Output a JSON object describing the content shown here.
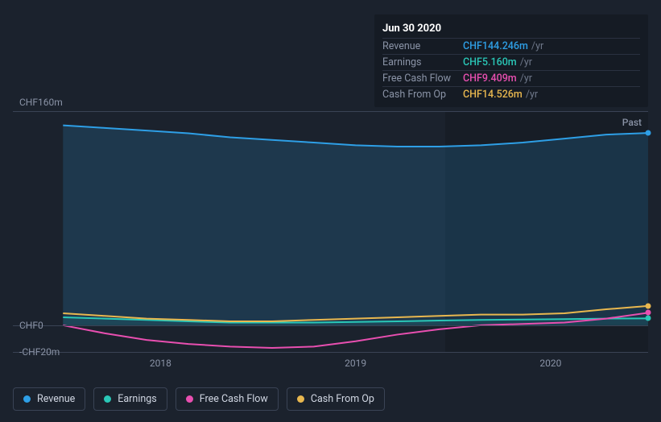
{
  "tooltip": {
    "date": "Jun 30 2020",
    "rows": [
      {
        "label": "Revenue",
        "value": "CHF144.246m",
        "unit": "/yr",
        "color": "#2e9fe6"
      },
      {
        "label": "Earnings",
        "value": "CHF5.160m",
        "unit": "/yr",
        "color": "#2ac7b7"
      },
      {
        "label": "Free Cash Flow",
        "value": "CHF9.409m",
        "unit": "/yr",
        "color": "#e84fb0"
      },
      {
        "label": "Cash From Op",
        "value": "CHF14.526m",
        "unit": "/yr",
        "color": "#e8b74f"
      }
    ]
  },
  "chart": {
    "type": "area-line",
    "y_top_label": "CHF160m",
    "y_zero_label": "CHF0",
    "y_bottom_label": "-CHF20m",
    "ylim": [
      -20,
      160
    ],
    "past_label": "Past",
    "past_shade_from_pct": 68,
    "zero_line_pct": 88.9,
    "gridline_color": "#3a4355",
    "background": "#1b222d",
    "x_ticks": [
      {
        "label": "2018",
        "pct": 20
      },
      {
        "label": "2019",
        "pct": 52
      },
      {
        "label": "2020",
        "pct": 84
      }
    ],
    "x_start_pct": 4,
    "series": {
      "revenue": {
        "color": "#2e9fe6",
        "fill": "rgba(46,159,230,0.18)",
        "width": 2,
        "values": [
          150,
          148,
          146,
          144,
          141,
          139,
          137,
          135,
          134,
          134,
          135,
          137,
          140,
          143,
          144.2
        ],
        "legend": "Revenue",
        "area": true
      },
      "earnings": {
        "color": "#2ac7b7",
        "fill": "rgba(42,199,183,0.10)",
        "width": 2,
        "values": [
          6,
          5,
          4,
          3,
          2,
          2,
          2,
          2.5,
          3,
          3.5,
          4,
          4.3,
          4.6,
          5,
          5.16
        ],
        "legend": "Earnings",
        "area": true
      },
      "fcf": {
        "color": "#e84fb0",
        "width": 2,
        "values": [
          0,
          -6,
          -11,
          -14,
          -16,
          -17,
          -16,
          -12,
          -7,
          -3,
          0,
          1,
          2,
          5,
          9.4
        ],
        "legend": "Free Cash Flow",
        "area": false
      },
      "cfo": {
        "color": "#e8b74f",
        "width": 2,
        "values": [
          9,
          7,
          5,
          4,
          3,
          3,
          4,
          5,
          6,
          7,
          8,
          8,
          9,
          12,
          14.5
        ],
        "legend": "Cash From Op",
        "area": false
      }
    }
  },
  "legend_order": [
    "revenue",
    "earnings",
    "fcf",
    "cfo"
  ]
}
